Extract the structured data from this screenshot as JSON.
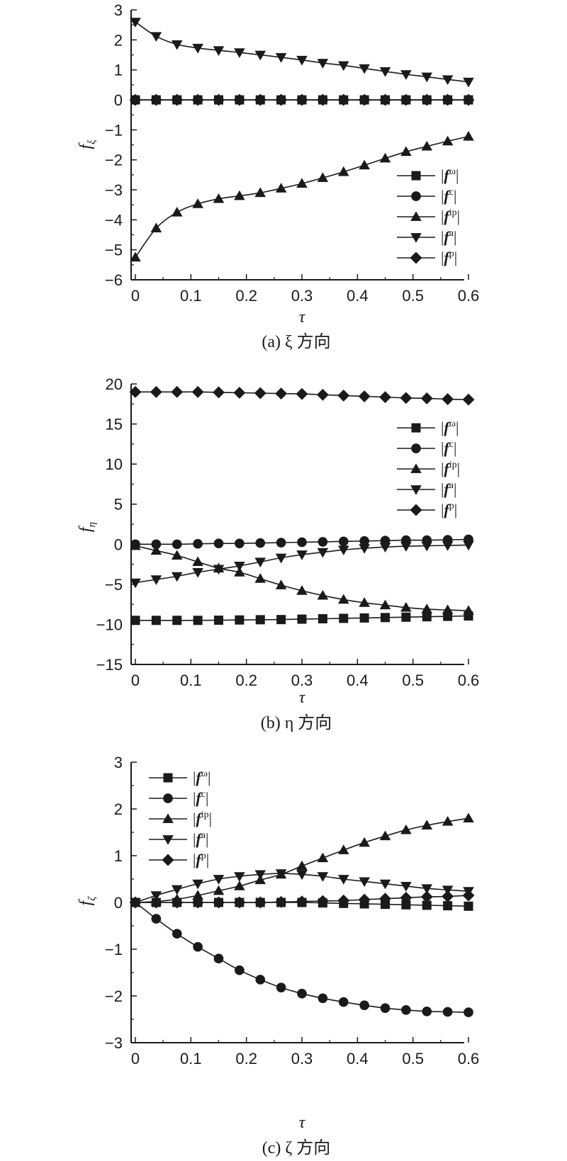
{
  "chart_data": [
    {
      "panel": "a",
      "type": "line",
      "caption": "(a) ξ 方向",
      "xlabel": "τ",
      "ylabel": "f_ξ",
      "xlim": [
        0,
        0.6
      ],
      "ylim": [
        -6,
        3
      ],
      "xticks": [
        "0",
        "0.1",
        "0.2",
        "0.3",
        "0.4",
        "0.5",
        "0.6"
      ],
      "yticks": [
        "3",
        "2",
        "1",
        "0",
        "−1",
        "−2",
        "−3",
        "−4",
        "−5",
        "−6"
      ],
      "legend_position": "right-lower",
      "x": [
        0,
        0.0375,
        0.075,
        0.1125,
        0.15,
        0.1875,
        0.225,
        0.2625,
        0.3,
        0.3375,
        0.375,
        0.4125,
        0.45,
        0.4875,
        0.525,
        0.5625,
        0.6
      ],
      "series": [
        {
          "name": "|f^ω|",
          "marker": "square",
          "values": [
            0,
            0,
            0,
            0,
            0,
            0,
            0,
            0,
            0,
            0,
            0,
            0,
            0,
            0,
            0,
            0,
            0
          ]
        },
        {
          "name": "|f^c|",
          "marker": "circle",
          "values": [
            0,
            0,
            0,
            0,
            0,
            0,
            0,
            0,
            0,
            0,
            0,
            0,
            0,
            0,
            0,
            0,
            0
          ]
        },
        {
          "name": "|f^ip|",
          "marker": "triangle-up",
          "values": [
            -5.25,
            -4.28,
            -3.75,
            -3.47,
            -3.3,
            -3.2,
            -3.1,
            -2.95,
            -2.79,
            -2.6,
            -2.4,
            -2.18,
            -1.95,
            -1.73,
            -1.55,
            -1.38,
            -1.22
          ]
        },
        {
          "name": "|f^a|",
          "marker": "triangle-down",
          "values": [
            2.6,
            2.12,
            1.85,
            1.73,
            1.65,
            1.58,
            1.5,
            1.42,
            1.33,
            1.23,
            1.15,
            1.05,
            0.95,
            0.85,
            0.77,
            0.68,
            0.6
          ]
        },
        {
          "name": "|f^p|",
          "marker": "diamond",
          "values": [
            0,
            0,
            0,
            0,
            0,
            0,
            0,
            0,
            0,
            0,
            0,
            0,
            0,
            0,
            0,
            0,
            0
          ]
        }
      ]
    },
    {
      "panel": "b",
      "type": "line",
      "caption": "(b) η 方向",
      "xlabel": "τ",
      "ylabel": "f_η",
      "xlim": [
        0,
        0.6
      ],
      "ylim": [
        -15,
        20
      ],
      "xticks": [
        "0",
        "0.1",
        "0.2",
        "0.3",
        "0.4",
        "0.5",
        "0.6"
      ],
      "yticks": [
        "20",
        "15",
        "10",
        "5",
        "0",
        "−5",
        "−10",
        "−15"
      ],
      "legend_position": "right-upper",
      "x": [
        0,
        0.0375,
        0.075,
        0.1125,
        0.15,
        0.1875,
        0.225,
        0.2625,
        0.3,
        0.3375,
        0.375,
        0.4125,
        0.45,
        0.4875,
        0.525,
        0.5625,
        0.6
      ],
      "series": [
        {
          "name": "|f^ω|",
          "marker": "square",
          "values": [
            -9.5,
            -9.5,
            -9.5,
            -9.5,
            -9.48,
            -9.45,
            -9.42,
            -9.4,
            -9.35,
            -9.3,
            -9.25,
            -9.2,
            -9.15,
            -9.1,
            -9.05,
            -9.0,
            -8.95
          ]
        },
        {
          "name": "|f^c|",
          "marker": "circle",
          "values": [
            0,
            0,
            0,
            0.05,
            0.1,
            0.1,
            0.15,
            0.2,
            0.25,
            0.3,
            0.35,
            0.4,
            0.45,
            0.5,
            0.5,
            0.55,
            0.6
          ]
        },
        {
          "name": "|f^ip|",
          "marker": "triangle-up",
          "values": [
            -0.2,
            -0.8,
            -1.4,
            -2.2,
            -3.0,
            -3.5,
            -4.3,
            -5.1,
            -5.8,
            -6.4,
            -6.9,
            -7.3,
            -7.6,
            -7.9,
            -8.1,
            -8.2,
            -8.3
          ]
        },
        {
          "name": "|f^a|",
          "marker": "triangle-down",
          "values": [
            -4.8,
            -4.4,
            -4.0,
            -3.5,
            -3.1,
            -2.7,
            -2.2,
            -1.7,
            -1.3,
            -1.0,
            -0.7,
            -0.5,
            -0.35,
            -0.25,
            -0.2,
            -0.15,
            -0.1
          ]
        },
        {
          "name": "|f^p|",
          "marker": "diamond",
          "values": [
            19.0,
            19.0,
            19.0,
            19.0,
            18.95,
            18.9,
            18.85,
            18.8,
            18.75,
            18.65,
            18.55,
            18.45,
            18.35,
            18.25,
            18.2,
            18.1,
            18.05
          ]
        }
      ]
    },
    {
      "panel": "c",
      "type": "line",
      "caption": "(c) ζ 方向",
      "xlabel": "τ",
      "ylabel": "f_ζ",
      "xlim": [
        0,
        0.6
      ],
      "ylim": [
        -3,
        3
      ],
      "xticks": [
        "0",
        "0.1",
        "0.2",
        "0.3",
        "0.4",
        "0.5",
        "0.6"
      ],
      "yticks": [
        "3",
        "2",
        "1",
        "0",
        "−1",
        "−2",
        "−3"
      ],
      "legend_position": "left-upper",
      "x": [
        0,
        0.0375,
        0.075,
        0.1125,
        0.15,
        0.1875,
        0.225,
        0.2625,
        0.3,
        0.3375,
        0.375,
        0.4125,
        0.45,
        0.4875,
        0.525,
        0.5625,
        0.6
      ],
      "series": [
        {
          "name": "|f^ω|",
          "marker": "square",
          "values": [
            0,
            0,
            0,
            0,
            0,
            0,
            0,
            0,
            0,
            -0.01,
            -0.02,
            -0.03,
            -0.04,
            -0.05,
            -0.06,
            -0.07,
            -0.08
          ]
        },
        {
          "name": "|f^c|",
          "marker": "circle",
          "values": [
            0,
            -0.35,
            -0.67,
            -0.95,
            -1.2,
            -1.45,
            -1.65,
            -1.82,
            -1.95,
            -2.05,
            -2.13,
            -2.2,
            -2.26,
            -2.3,
            -2.33,
            -2.34,
            -2.35
          ]
        },
        {
          "name": "|f^ip|",
          "marker": "triangle-up",
          "values": [
            0,
            0.02,
            0.07,
            0.15,
            0.25,
            0.35,
            0.48,
            0.6,
            0.78,
            0.95,
            1.12,
            1.28,
            1.42,
            1.55,
            1.65,
            1.73,
            1.8
          ]
        },
        {
          "name": "|f^a|",
          "marker": "triangle-down",
          "values": [
            0,
            0.15,
            0.28,
            0.4,
            0.5,
            0.56,
            0.6,
            0.62,
            0.6,
            0.56,
            0.5,
            0.45,
            0.4,
            0.35,
            0.3,
            0.27,
            0.24
          ]
        },
        {
          "name": "|f^p|",
          "marker": "diamond",
          "values": [
            0,
            0,
            0,
            0,
            0,
            0,
            0,
            0.01,
            0.02,
            0.03,
            0.04,
            0.06,
            0.08,
            0.1,
            0.12,
            0.13,
            0.15
          ]
        }
      ]
    }
  ]
}
